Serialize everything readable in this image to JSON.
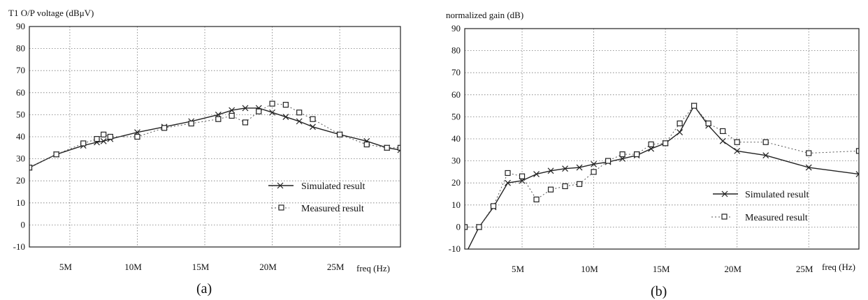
{
  "chart_data": [
    {
      "type": "line",
      "panel_label": "(a)",
      "ylabel": "T1 O/P voltage (dBμV)",
      "xlabel": "freq (Hz)",
      "xlim": [
        2,
        29.5
      ],
      "ylim": [
        -10,
        90
      ],
      "yticks": [
        -10,
        0,
        10,
        20,
        30,
        40,
        50,
        60,
        70,
        80,
        90
      ],
      "xticks": [
        {
          "value": 5,
          "label": "5M"
        },
        {
          "value": 10,
          "label": "10M"
        },
        {
          "value": 15,
          "label": "15M"
        },
        {
          "value": 20,
          "label": "20M"
        },
        {
          "value": 25,
          "label": "25M"
        }
      ],
      "grid": true,
      "legend_position": "lower-right",
      "series": [
        {
          "name": "Simulated result",
          "style": "solid-with-x",
          "x": [
            2,
            4,
            6,
            7,
            7.5,
            8,
            10,
            12,
            14,
            16,
            17,
            18,
            19,
            20,
            21,
            22,
            23,
            25,
            27,
            28.5,
            29.5
          ],
          "y": [
            26,
            32,
            36,
            37.5,
            38,
            39,
            42,
            44.5,
            47,
            50,
            52,
            53,
            53,
            51,
            49,
            47,
            44.5,
            41,
            38,
            35,
            34
          ]
        },
        {
          "name": "Measured result",
          "style": "dashed-with-square",
          "x": [
            2,
            4,
            6,
            7,
            7.5,
            8,
            10,
            12,
            14,
            16,
            17,
            18,
            19,
            20,
            21,
            22,
            23,
            25,
            27,
            28.5,
            29.5
          ],
          "y": [
            26,
            32,
            37,
            39,
            41,
            40,
            40,
            44,
            46,
            48,
            49.5,
            46.5,
            51.5,
            55,
            54.5,
            51,
            48,
            41,
            36.5,
            35,
            35
          ]
        }
      ]
    },
    {
      "type": "line",
      "panel_label": "(b)",
      "ylabel": "normalized gain (dB)",
      "xlabel": "freq (Hz)",
      "xlim": [
        1,
        28.5
      ],
      "ylim": [
        -10,
        90
      ],
      "yticks": [
        -10,
        0,
        10,
        20,
        30,
        40,
        50,
        60,
        70,
        80,
        90
      ],
      "xticks": [
        {
          "value": 5,
          "label": "5M"
        },
        {
          "value": 10,
          "label": "10M"
        },
        {
          "value": 15,
          "label": "15M"
        },
        {
          "value": 20,
          "label": "20M"
        },
        {
          "value": 25,
          "label": "25M"
        }
      ],
      "grid": true,
      "legend_position": "lower-right",
      "series": [
        {
          "name": "Simulated result",
          "style": "solid-with-x",
          "x": [
            1,
            2,
            3,
            4,
            5,
            6,
            7,
            8,
            9,
            10,
            11,
            12,
            13,
            14,
            15,
            16,
            17,
            18,
            19,
            20,
            22,
            25,
            28.5
          ],
          "y": [
            -13,
            0,
            9,
            20,
            21,
            24,
            25.5,
            26.5,
            27,
            28.5,
            29.5,
            31,
            32.5,
            35.5,
            38,
            43,
            55,
            46,
            39,
            34.5,
            32.5,
            27,
            24
          ]
        },
        {
          "name": "Measured result",
          "style": "dashed-with-square",
          "x": [
            1,
            2,
            3,
            4,
            5,
            6,
            7,
            8,
            9,
            10,
            11,
            12,
            13,
            14,
            15,
            16,
            17,
            18,
            19,
            20,
            22,
            25,
            28.5
          ],
          "y": [
            0,
            0,
            9.5,
            24.5,
            23,
            12.5,
            17,
            18.5,
            19.5,
            25,
            30,
            33,
            33,
            37.5,
            38,
            47,
            55,
            47,
            43.5,
            38.5,
            38.5,
            33.5,
            34.5
          ]
        }
      ]
    }
  ]
}
